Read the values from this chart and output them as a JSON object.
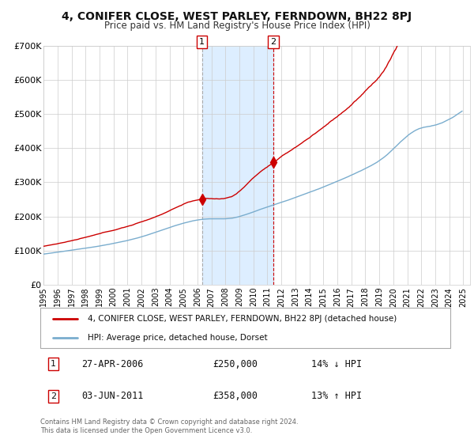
{
  "title": "4, CONIFER CLOSE, WEST PARLEY, FERNDOWN, BH22 8PJ",
  "subtitle": "Price paid vs. HM Land Registry's House Price Index (HPI)",
  "legend_line1": "4, CONIFER CLOSE, WEST PARLEY, FERNDOWN, BH22 8PJ (detached house)",
  "legend_line2": "HPI: Average price, detached house, Dorset",
  "sale1_label": "27-APR-2006",
  "sale1_price": 250000,
  "sale1_price_label": "£250,000",
  "sale1_hpi": "14% ↓ HPI",
  "sale1_x": 2006.32,
  "sale2_label": "03-JUN-2011",
  "sale2_price": 358000,
  "sale2_price_label": "£358,000",
  "sale2_hpi": "13% ↑ HPI",
  "sale2_x": 2011.42,
  "red_color": "#cc0000",
  "blue_color": "#7aadce",
  "shade_color": "#ddeeff",
  "grid_color": "#cccccc",
  "background_color": "#ffffff",
  "footer": "Contains HM Land Registry data © Crown copyright and database right 2024.\nThis data is licensed under the Open Government Licence v3.0.",
  "ylim": [
    0,
    700000
  ],
  "yticks": [
    0,
    100000,
    200000,
    300000,
    400000,
    500000,
    600000,
    700000
  ],
  "ytick_labels": [
    "£0",
    "£100K",
    "£200K",
    "£300K",
    "£400K",
    "£500K",
    "£600K",
    "£700K"
  ],
  "xlim_start": 1995,
  "xlim_end": 2025.5
}
